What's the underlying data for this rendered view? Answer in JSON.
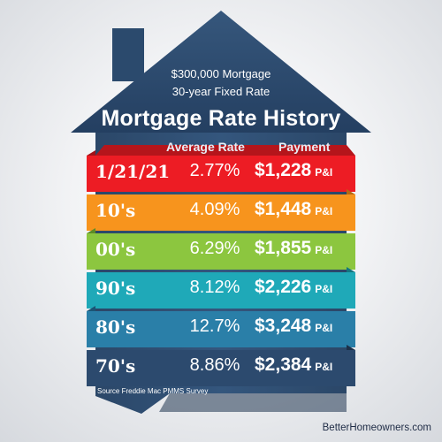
{
  "header": {
    "line1": "$300,000 Mortgage",
    "line2": "30-year Fixed Rate",
    "title": "Mortgage Rate History"
  },
  "columns": {
    "rate": "Average Rate",
    "payment": "Payment"
  },
  "rows": [
    {
      "period": "1/21/21",
      "rate": "2.77%",
      "payment": "$1,228",
      "unit": "P&I",
      "color": "#ed1c24",
      "fold": "#a31218"
    },
    {
      "period": "10's",
      "rate": "4.09%",
      "payment": "$1,448",
      "unit": "P&I",
      "color": "#f7941d",
      "fold": "#b86810"
    },
    {
      "period": "00's",
      "rate": "6.29%",
      "payment": "$1,855",
      "unit": "P&I",
      "color": "#8cc63f",
      "fold": "#5e8c26"
    },
    {
      "period": "90's",
      "rate": "8.12%",
      "payment": "$2,226",
      "unit": "P&I",
      "color": "#1fa9b8",
      "fold": "#137680"
    },
    {
      "period": "80's",
      "rate": "12.7%",
      "payment": "$3,248",
      "unit": "P&I",
      "color": "#2a7fa8",
      "fold": "#1a5575"
    },
    {
      "period": "70's",
      "rate": "8.86%",
      "payment": "$2,384",
      "unit": "P&I",
      "color": "#2c4a6e",
      "fold": "#1c3049"
    }
  ],
  "source": "Source Freddie Mac PMMS Survey",
  "website": "BetterHomeowners.com",
  "colors": {
    "roof": "#2e4d70",
    "body": "#274266"
  }
}
